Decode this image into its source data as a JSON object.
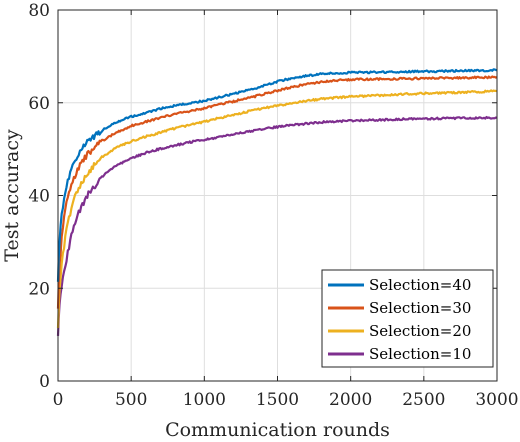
{
  "chart_data": {
    "type": "line",
    "title": "",
    "xlabel": "Communication rounds",
    "ylabel": "Test accuracy",
    "xlim": [
      0,
      3000
    ],
    "ylim": [
      0,
      80
    ],
    "xticks": [
      0,
      500,
      1000,
      1500,
      2000,
      2500,
      3000
    ],
    "yticks": [
      0,
      20,
      40,
      60,
      80
    ],
    "grid": true,
    "legend_position": "bottom-right",
    "series": [
      {
        "name": "Selection=40",
        "color": "#0072BD",
        "x": [
          0,
          10,
          25,
          50,
          75,
          100,
          150,
          200,
          300,
          400,
          500,
          600,
          700,
          800,
          900,
          1000,
          1100,
          1200,
          1300,
          1400,
          1500,
          1600,
          1700,
          1800,
          1900,
          2000,
          2200,
          2400,
          2600,
          2800,
          3000
        ],
        "y": [
          22,
          30,
          36,
          41,
          44,
          46.5,
          49.5,
          51.5,
          54,
          55.8,
          57,
          57.8,
          58.7,
          59.4,
          59.9,
          60.4,
          61.2,
          61.9,
          62.7,
          63.6,
          64.6,
          65.3,
          65.8,
          66.2,
          66.4,
          66.5,
          66.6,
          66.7,
          66.8,
          66.9,
          67
        ]
      },
      {
        "name": "Selection=30",
        "color": "#D95319",
        "x": [
          0,
          10,
          25,
          50,
          75,
          100,
          150,
          200,
          300,
          400,
          500,
          600,
          700,
          800,
          900,
          1000,
          1100,
          1200,
          1300,
          1400,
          1500,
          1600,
          1700,
          1800,
          1900,
          2000,
          2200,
          2400,
          2600,
          2800,
          3000
        ],
        "y": [
          16,
          25,
          31,
          37,
          40.5,
          43,
          46.5,
          48.8,
          51.8,
          53.6,
          55,
          55.9,
          56.8,
          57.6,
          58.2,
          58.8,
          59.6,
          60.3,
          61,
          61.8,
          62.6,
          63.4,
          64,
          64.5,
          64.8,
          65,
          65.1,
          65.2,
          65.3,
          65.4,
          65.5
        ]
      },
      {
        "name": "Selection=20",
        "color": "#EDB120",
        "x": [
          0,
          10,
          25,
          50,
          75,
          100,
          150,
          200,
          300,
          400,
          500,
          600,
          700,
          800,
          900,
          1000,
          1100,
          1200,
          1300,
          1400,
          1500,
          1600,
          1700,
          1800,
          1900,
          2000,
          2200,
          2400,
          2600,
          2800,
          3000
        ],
        "y": [
          12,
          20,
          25,
          31,
          35,
          38.5,
          42,
          44.8,
          48.3,
          50.3,
          51.7,
          52.7,
          53.6,
          54.5,
          55.2,
          55.9,
          56.7,
          57.4,
          58.1,
          58.8,
          59.4,
          59.9,
          60.4,
          60.8,
          61.1,
          61.3,
          61.6,
          61.9,
          62.1,
          62.3,
          62.5
        ]
      },
      {
        "name": "Selection=10",
        "color": "#7E2F8E",
        "x": [
          0,
          10,
          25,
          50,
          75,
          100,
          150,
          200,
          300,
          400,
          500,
          600,
          700,
          800,
          900,
          1000,
          1100,
          1200,
          1300,
          1400,
          1500,
          1600,
          1700,
          1800,
          1900,
          2000,
          2200,
          2400,
          2600,
          2800,
          3000
        ],
        "y": [
          10,
          17,
          21,
          25,
          29,
          32.5,
          37,
          40,
          44,
          46.5,
          48,
          49.2,
          50.1,
          50.8,
          51.5,
          52,
          52.6,
          53.2,
          53.8,
          54.3,
          54.8,
          55.2,
          55.5,
          55.8,
          56,
          56.1,
          56.3,
          56.5,
          56.6,
          56.7,
          56.8
        ]
      }
    ]
  }
}
